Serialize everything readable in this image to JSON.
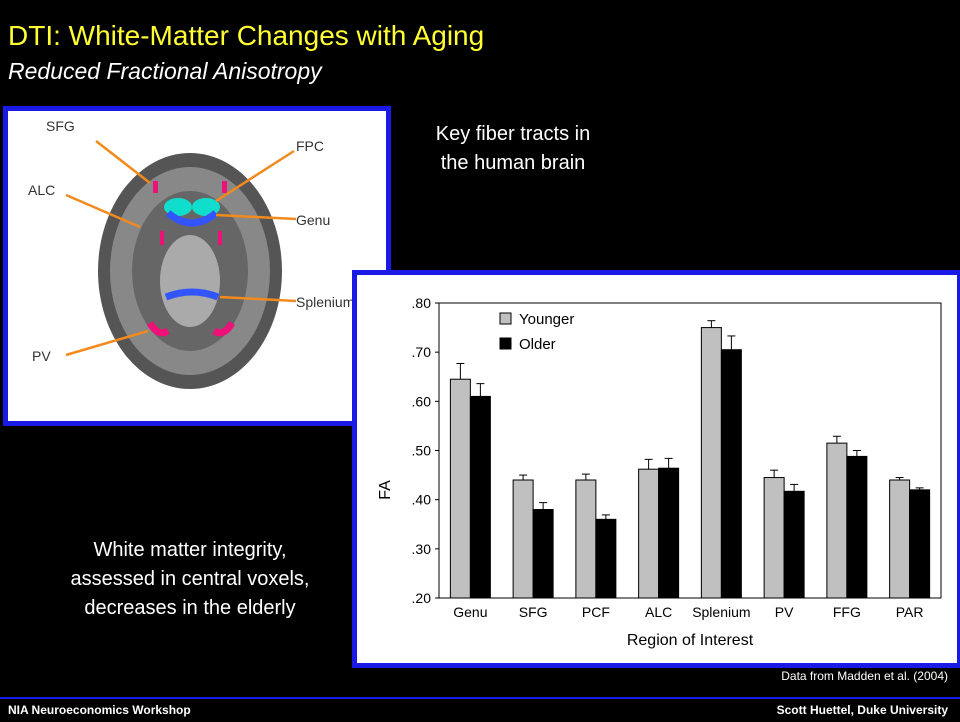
{
  "header": {
    "title": "DTI: White-Matter Changes with Aging",
    "subtitle": "Reduced Fractional Anisotropy"
  },
  "brain_figure": {
    "labels": [
      "SFG",
      "FPC",
      "ALC",
      "Genu",
      "Splenium",
      "PV"
    ]
  },
  "captions": {
    "key_tracts_line1": "Key fiber tracts in",
    "key_tracts_line2": "the human brain",
    "integrity_line1": "White matter integrity,",
    "integrity_line2": "assessed in central voxels,",
    "integrity_line3": "decreases in the elderly"
  },
  "source_note": "Data from Madden et al. (2004)",
  "footer": {
    "left": "NIA Neuroeconomics Workshop",
    "right": "Scott Huettel, Duke University"
  },
  "chart_data": {
    "type": "bar",
    "categories": [
      "Genu",
      "SFG",
      "PCF",
      "ALC",
      "Splenium",
      "PV",
      "FFG",
      "PAR"
    ],
    "series": [
      {
        "name": "Younger",
        "values": [
          0.645,
          0.44,
          0.44,
          0.462,
          0.75,
          0.445,
          0.515,
          0.44
        ],
        "errors": [
          0.032,
          0.01,
          0.012,
          0.02,
          0.014,
          0.015,
          0.014,
          0.005
        ]
      },
      {
        "name": "Older",
        "values": [
          0.61,
          0.38,
          0.36,
          0.464,
          0.705,
          0.417,
          0.488,
          0.42
        ],
        "errors": [
          0.026,
          0.014,
          0.009,
          0.02,
          0.028,
          0.014,
          0.012,
          0.004
        ]
      }
    ],
    "series_colors": [
      "#c0c0c0",
      "#000000"
    ],
    "ylabel": "FA",
    "xlabel": "Region of Interest",
    "ylim": [
      0.2,
      0.8
    ],
    "yticks": [
      0.2,
      0.3,
      0.4,
      0.5,
      0.6,
      0.7,
      0.8
    ],
    "ytick_labels": [
      ".20",
      ".30",
      ".40",
      ".50",
      ".60",
      ".70",
      ".80"
    ],
    "legend": "top-left",
    "grid": false
  }
}
